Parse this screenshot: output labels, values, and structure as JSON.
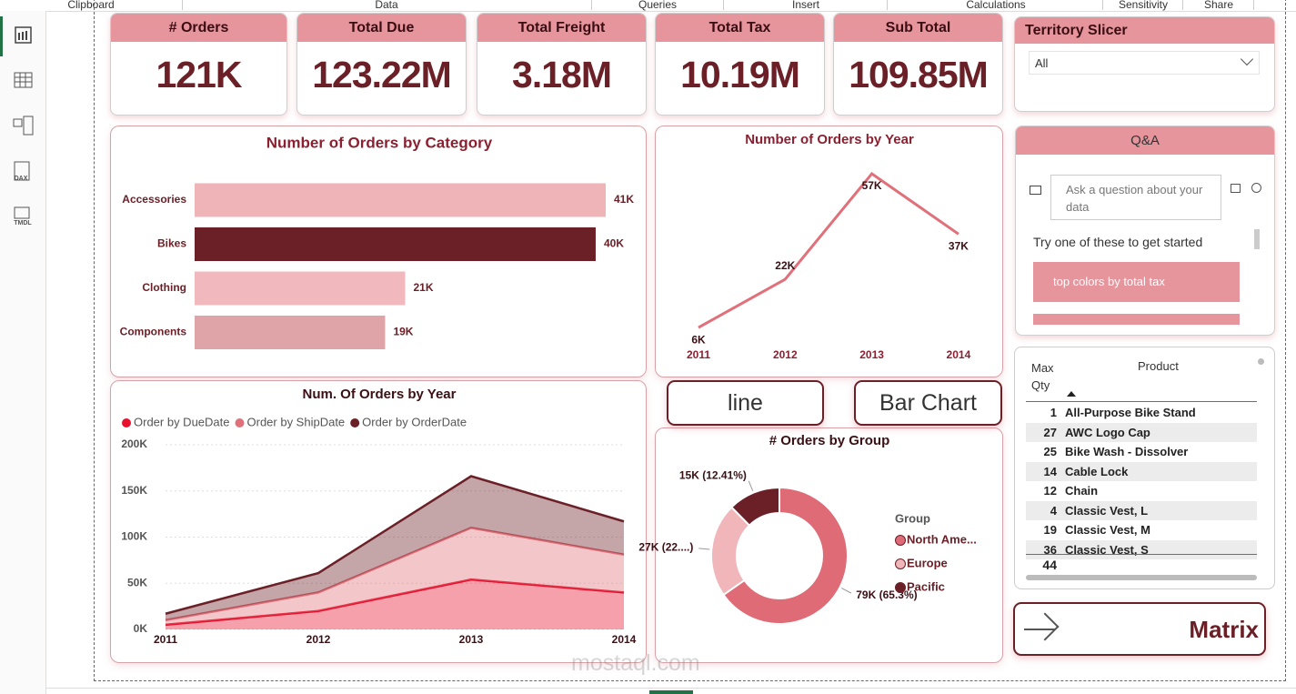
{
  "ribbon": {
    "groups": [
      "Clipboard",
      "Data",
      "Queries",
      "Insert",
      "Calculations",
      "Sensitivity",
      "Share"
    ]
  },
  "sidebar": {
    "labels": [
      "DAX",
      "TMDL"
    ]
  },
  "cards": [
    {
      "title": "# Orders",
      "value": "121K"
    },
    {
      "title": "Total Due",
      "value": "123.22M"
    },
    {
      "title": "Total Freight",
      "value": "3.18M"
    },
    {
      "title": "Total Tax",
      "value": "10.19M"
    },
    {
      "title": "Sub Total",
      "value": "109.85M"
    }
  ],
  "slicer": {
    "title": "Territory Slicer",
    "selected": "All"
  },
  "qa": {
    "title": "Q&A",
    "placeholder": "Ask a question about your data",
    "prompt": "Try one of these to get started",
    "suggestion": "top colors by total tax"
  },
  "buttons": [
    "line",
    "Bar Chart",
    "Matrix"
  ],
  "matrix_table": {
    "headers": [
      "Max Qty",
      "Product"
    ],
    "rows": [
      [
        1,
        "All-Purpose Bike Stand"
      ],
      [
        27,
        "AWC Logo Cap"
      ],
      [
        25,
        "Bike Wash - Dissolver"
      ],
      [
        14,
        "Cable Lock"
      ],
      [
        12,
        "Chain"
      ],
      [
        4,
        "Classic Vest, L"
      ],
      [
        19,
        "Classic Vest, M"
      ],
      [
        36,
        "Classic Vest, S"
      ]
    ],
    "total": 44
  },
  "watermark": "mostaql.com",
  "chart_data": [
    {
      "type": "bar",
      "title": "Number of Orders by Category",
      "categories": [
        "Accessories",
        "Bikes",
        "Clothing",
        "Components"
      ],
      "values": [
        41000,
        40000,
        21000,
        19000
      ],
      "value_labels": [
        "41K",
        "40K",
        "21K",
        "19K"
      ],
      "colors": [
        "#efb4b8",
        "#6b2027",
        "#f1b9bd",
        "#dea4a8"
      ]
    },
    {
      "type": "line",
      "title": "Number of Orders by Year",
      "categories": [
        "2011",
        "2012",
        "2013",
        "2014"
      ],
      "values": [
        6000,
        22000,
        57000,
        37000
      ],
      "value_labels": [
        "6K",
        "22K",
        "57K",
        "37K"
      ],
      "color": "#e0707a"
    },
    {
      "type": "area",
      "stacked": true,
      "title": "Num. Of Orders by Year",
      "categories": [
        "2011",
        "2012",
        "2013",
        "2014"
      ],
      "series": [
        {
          "name": "Order by DueDate",
          "color": "#e8112d",
          "values": [
            5000,
            20000,
            54000,
            40000
          ]
        },
        {
          "name": "Order by ShipDate",
          "color": "#e0707a",
          "values": [
            5000,
            20000,
            56000,
            41000
          ]
        },
        {
          "name": "Order by OrderDate",
          "color": "#6b2027",
          "values": [
            7000,
            21000,
            56000,
            36000
          ]
        }
      ],
      "ylim": [
        0,
        200000
      ],
      "yticks": [
        {
          "value": 0,
          "label": "0K"
        },
        {
          "value": 50000,
          "label": "50K"
        },
        {
          "value": 100000,
          "label": "100K"
        },
        {
          "value": 150000,
          "label": "150K"
        },
        {
          "value": 200000,
          "label": "200K"
        }
      ],
      "grid": true,
      "legend": "top-left"
    },
    {
      "type": "donut",
      "title": "# Orders by Group",
      "legend_title": "Group",
      "categories": [
        "North Ame...",
        "Europe",
        "Pacific"
      ],
      "values": [
        79000,
        27000,
        15000
      ],
      "value_labels": [
        "79K (65.3%)",
        "27K (22....)",
        "15K (12.41%)"
      ],
      "colors": [
        "#de6b75",
        "#f0b6ba",
        "#6b2027"
      ]
    }
  ]
}
